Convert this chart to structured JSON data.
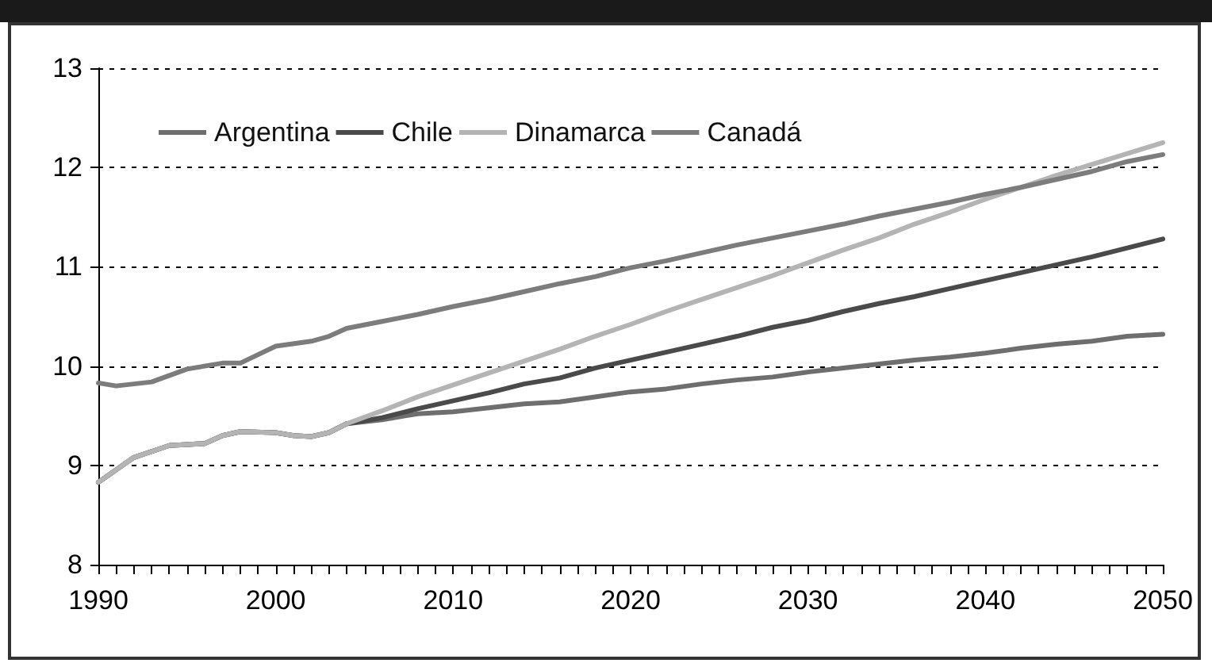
{
  "chart_data": {
    "type": "line",
    "xlim": [
      1990,
      2050
    ],
    "ylim": [
      8,
      13
    ],
    "yticks": [
      8,
      9,
      10,
      11,
      12,
      13
    ],
    "xticks": [
      1990,
      {
        "value": 1991,
        "label": null
      },
      {
        "value": 1992,
        "label": null
      },
      {
        "value": 1993,
        "label": null
      },
      {
        "value": 1994,
        "label": null
      },
      {
        "value": 1995,
        "label": null
      },
      {
        "value": 1996,
        "label": null
      },
      {
        "value": 1997,
        "label": null
      },
      {
        "value": 1998,
        "label": null
      },
      {
        "value": 1999,
        "label": null
      },
      2000,
      {
        "value": 2001,
        "label": null
      },
      {
        "value": 2002,
        "label": null
      },
      {
        "value": 2003,
        "label": null
      },
      {
        "value": 2004,
        "label": null
      },
      {
        "value": 2005,
        "label": null
      },
      {
        "value": 2006,
        "label": null
      },
      {
        "value": 2007,
        "label": null
      },
      {
        "value": 2008,
        "label": null
      },
      {
        "value": 2009,
        "label": null
      },
      2010,
      {
        "value": 2011,
        "label": null
      },
      {
        "value": 2012,
        "label": null
      },
      {
        "value": 2013,
        "label": null
      },
      {
        "value": 2014,
        "label": null
      },
      {
        "value": 2015,
        "label": null
      },
      {
        "value": 2016,
        "label": null
      },
      {
        "value": 2017,
        "label": null
      },
      {
        "value": 2018,
        "label": null
      },
      {
        "value": 2019,
        "label": null
      },
      2020,
      {
        "value": 2021,
        "label": null
      },
      {
        "value": 2022,
        "label": null
      },
      {
        "value": 2023,
        "label": null
      },
      {
        "value": 2024,
        "label": null
      },
      {
        "value": 2025,
        "label": null
      },
      {
        "value": 2026,
        "label": null
      },
      {
        "value": 2027,
        "label": null
      },
      {
        "value": 2028,
        "label": null
      },
      {
        "value": 2029,
        "label": null
      },
      2030,
      {
        "value": 2031,
        "label": null
      },
      {
        "value": 2032,
        "label": null
      },
      {
        "value": 2033,
        "label": null
      },
      {
        "value": 2034,
        "label": null
      },
      {
        "value": 2035,
        "label": null
      },
      {
        "value": 2036,
        "label": null
      },
      {
        "value": 2037,
        "label": null
      },
      {
        "value": 2038,
        "label": null
      },
      {
        "value": 2039,
        "label": null
      },
      2040,
      {
        "value": 2041,
        "label": null
      },
      {
        "value": 2042,
        "label": null
      },
      {
        "value": 2043,
        "label": null
      },
      {
        "value": 2044,
        "label": null
      },
      {
        "value": 2045,
        "label": null
      },
      {
        "value": 2046,
        "label": null
      },
      {
        "value": 2047,
        "label": null
      },
      {
        "value": 2048,
        "label": null
      },
      {
        "value": 2049,
        "label": null
      },
      2050
    ],
    "grid": "y",
    "legend": "top left",
    "marker": "none",
    "line_style": "solid",
    "series": [
      {
        "name": "Argentina",
        "color": "#6e6e6e",
        "x": [
          1990,
          1992,
          1994,
          1996,
          1997,
          1998,
          2000,
          2001,
          2002,
          2003,
          2004,
          2006,
          2008,
          2010,
          2012,
          2014,
          2016,
          2018,
          2020,
          2022,
          2024,
          2026,
          2028,
          2030,
          2032,
          2034,
          2036,
          2038,
          2040,
          2042,
          2044,
          2046,
          2048,
          2050
        ],
        "values": [
          8.83,
          9.08,
          9.2,
          9.22,
          9.3,
          9.34,
          9.33,
          9.3,
          9.29,
          9.33,
          9.42,
          9.46,
          9.52,
          9.54,
          9.58,
          9.62,
          9.64,
          9.69,
          9.74,
          9.77,
          9.82,
          9.86,
          9.89,
          9.94,
          9.98,
          10.02,
          10.06,
          10.09,
          10.13,
          10.18,
          10.22,
          10.25,
          10.3,
          10.32
        ]
      },
      {
        "name": "Chile",
        "color": "#4a4a4a",
        "x": [
          1990,
          1992,
          1994,
          1996,
          1997,
          1998,
          2000,
          2001,
          2002,
          2003,
          2004,
          2006,
          2008,
          2010,
          2012,
          2014,
          2016,
          2018,
          2020,
          2022,
          2024,
          2026,
          2028,
          2030,
          2032,
          2034,
          2036,
          2038,
          2040,
          2042,
          2044,
          2046,
          2048,
          2050
        ],
        "values": [
          8.83,
          9.08,
          9.2,
          9.22,
          9.3,
          9.34,
          9.33,
          9.3,
          9.29,
          9.33,
          9.42,
          9.48,
          9.57,
          9.65,
          9.73,
          9.82,
          9.88,
          9.98,
          10.06,
          10.14,
          10.22,
          10.3,
          10.39,
          10.46,
          10.55,
          10.63,
          10.7,
          10.78,
          10.86,
          10.94,
          11.02,
          11.1,
          11.19,
          11.28
        ]
      },
      {
        "name": "Dinamarca",
        "color": "#b4b4b4",
        "x": [
          1990,
          1992,
          1994,
          1996,
          1997,
          1998,
          2000,
          2001,
          2002,
          2003,
          2004,
          2006,
          2008,
          2010,
          2012,
          2014,
          2016,
          2018,
          2020,
          2022,
          2024,
          2026,
          2028,
          2030,
          2032,
          2034,
          2036,
          2038,
          2040,
          2042,
          2044,
          2046,
          2048,
          2050
        ],
        "values": [
          8.83,
          9.08,
          9.2,
          9.22,
          9.3,
          9.34,
          9.33,
          9.3,
          9.29,
          9.33,
          9.42,
          9.55,
          9.69,
          9.81,
          9.93,
          10.05,
          10.17,
          10.3,
          10.42,
          10.55,
          10.67,
          10.79,
          10.91,
          11.04,
          11.17,
          11.29,
          11.43,
          11.55,
          11.68,
          11.8,
          11.92,
          12.03,
          12.14,
          12.25
        ]
      },
      {
        "name": "Canadá",
        "color": "#7c7c7c",
        "x": [
          1990,
          1991,
          1993,
          1995,
          1997,
          1998,
          2000,
          2002,
          2003,
          2004,
          2006,
          2008,
          2010,
          2012,
          2014,
          2016,
          2018,
          2020,
          2022,
          2024,
          2026,
          2028,
          2030,
          2032,
          2034,
          2036,
          2038,
          2040,
          2042,
          2044,
          2046,
          2048,
          2050
        ],
        "values": [
          9.83,
          9.8,
          9.84,
          9.97,
          10.03,
          10.03,
          10.2,
          10.25,
          10.3,
          10.38,
          10.45,
          10.52,
          10.6,
          10.67,
          10.75,
          10.83,
          10.9,
          10.99,
          11.06,
          11.14,
          11.22,
          11.29,
          11.36,
          11.43,
          11.51,
          11.58,
          11.65,
          11.73,
          11.8,
          11.88,
          11.96,
          12.06,
          12.13
        ]
      }
    ]
  }
}
